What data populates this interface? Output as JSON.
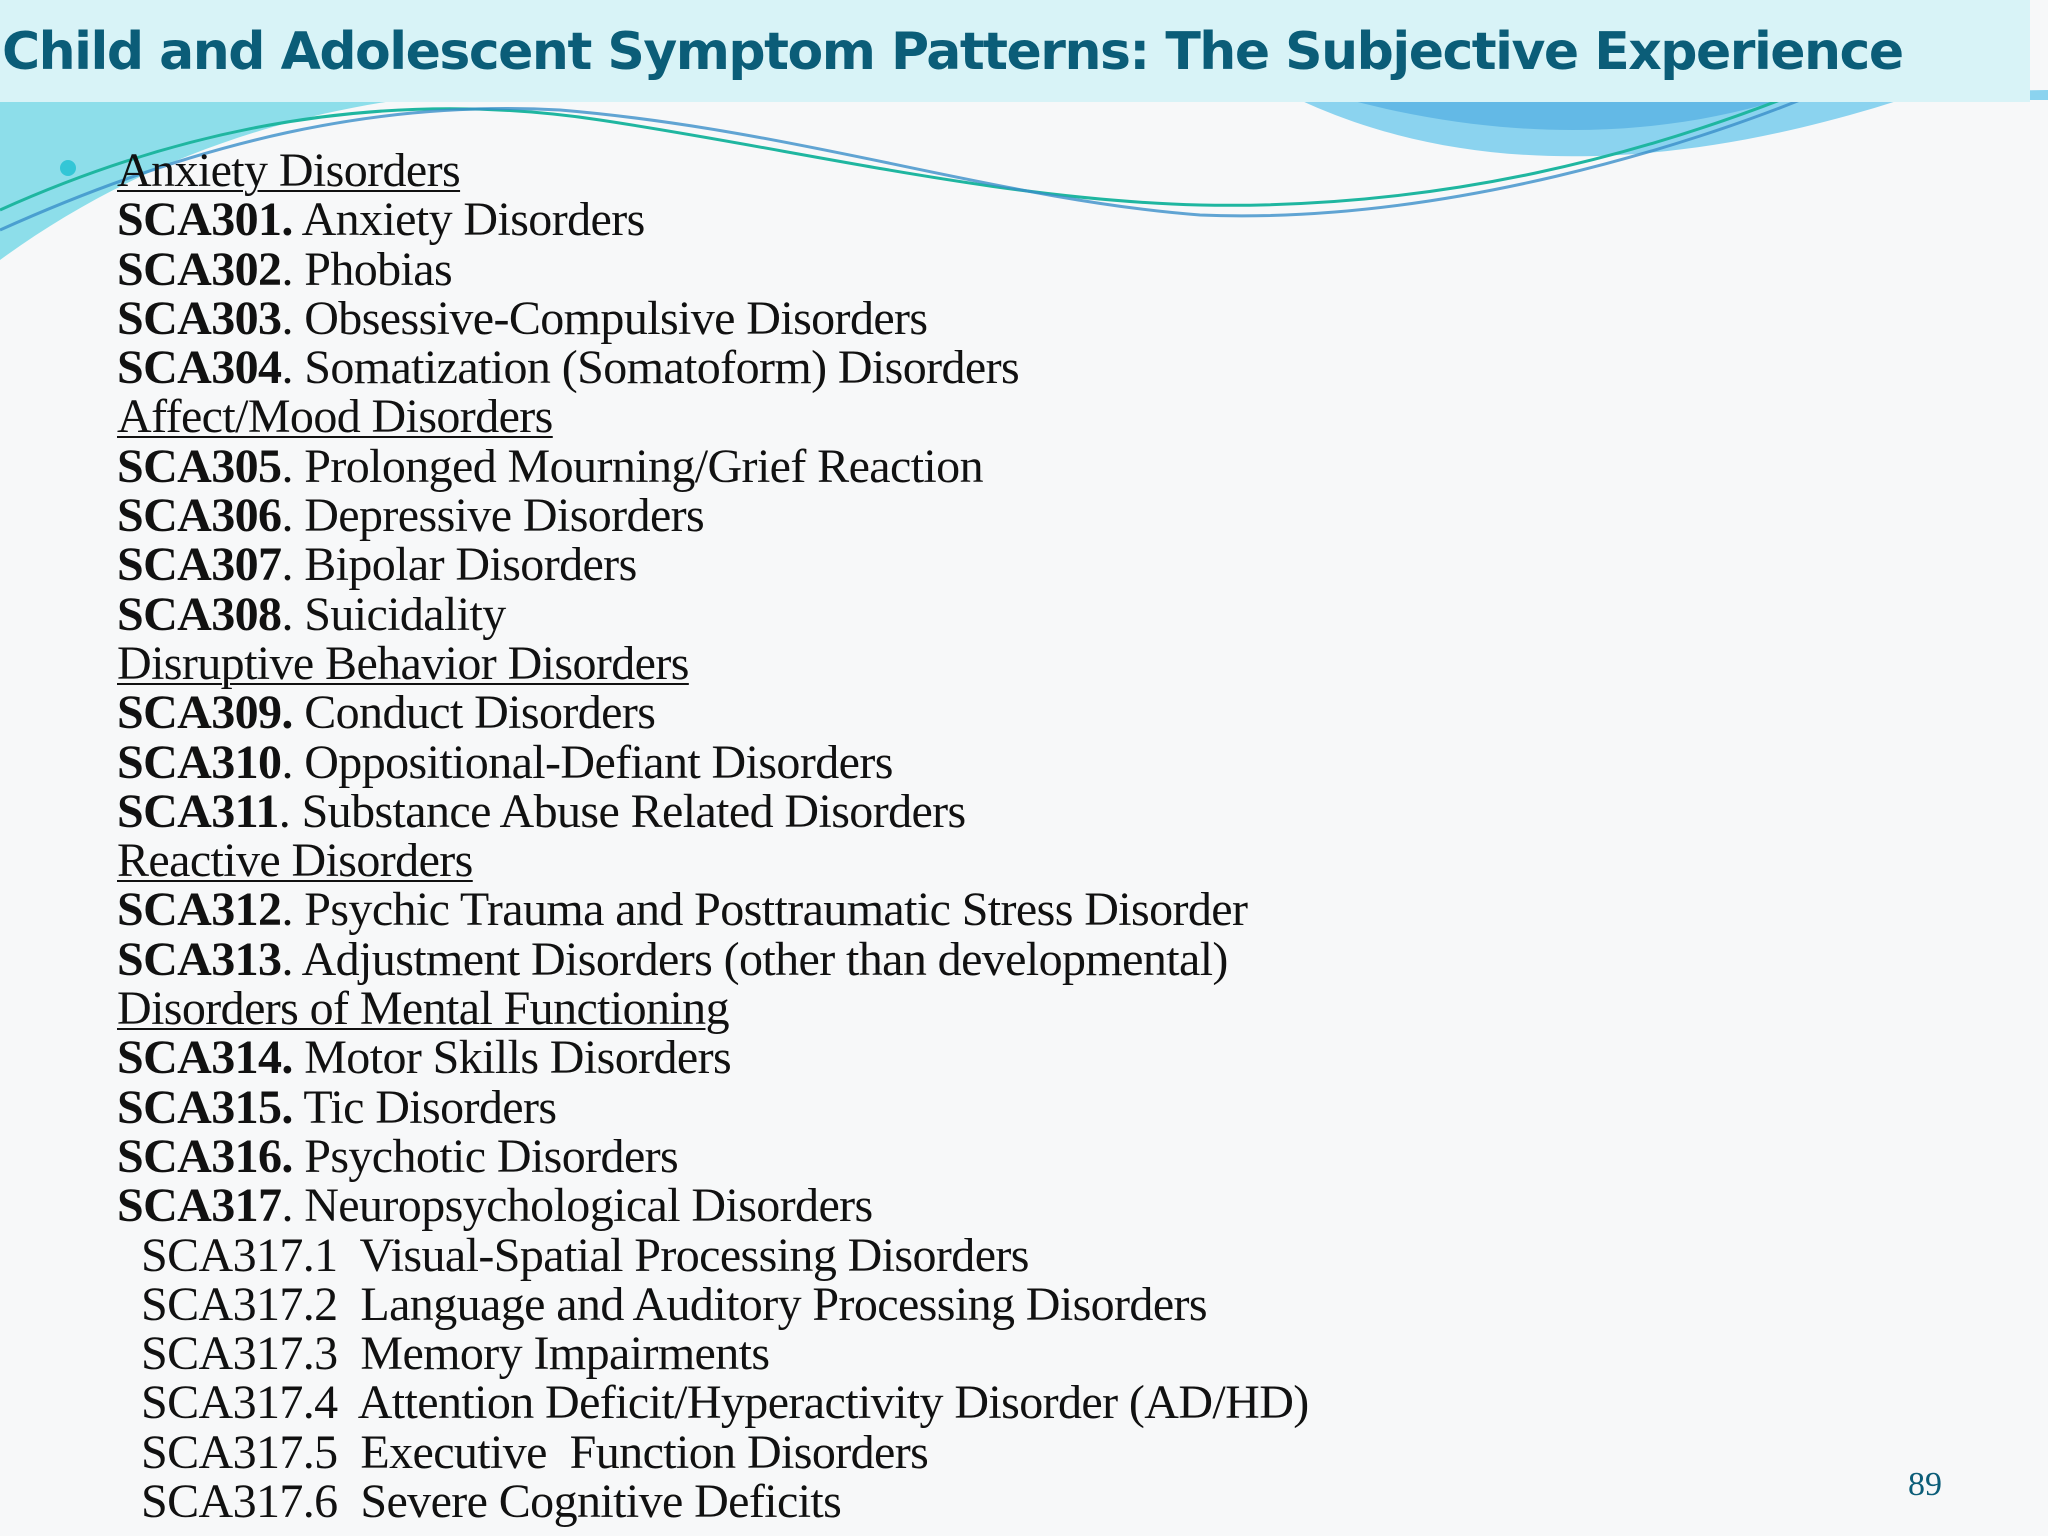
{
  "title": "Child and Adolescent Symptom Patterns: The Subjective Experience",
  "accent_color": "#0b5d78",
  "items": [
    {
      "type": "heading",
      "text": "Anxiety Disorders"
    },
    {
      "type": "item",
      "code": "SCA301.",
      "text": " Anxiety Disorders"
    },
    {
      "type": "item",
      "code": "SCA302",
      "text": ". Phobias"
    },
    {
      "type": "item",
      "code": "SCA303",
      "text": ". Obsessive-Compulsive Disorders"
    },
    {
      "type": "item",
      "code": "SCA304",
      "text": ". Somatization (Somatoform) Disorders"
    },
    {
      "type": "heading",
      "text": "Affect/Mood Disorders"
    },
    {
      "type": "item",
      "code": "SCA305",
      "text": ". Prolonged Mourning/Grief Reaction"
    },
    {
      "type": "item",
      "code": "SCA306",
      "text": ". Depressive Disorders"
    },
    {
      "type": "item",
      "code": "SCA307",
      "text": ". Bipolar Disorders"
    },
    {
      "type": "item",
      "code": "SCA308",
      "text": ". Suicidality"
    },
    {
      "type": "heading",
      "text": "Disruptive Behavior Disorders"
    },
    {
      "type": "item",
      "code": "SCA309.",
      "text": " Conduct Disorders"
    },
    {
      "type": "item",
      "code": "SCA310",
      "text": ". Oppositional-Defiant Disorders"
    },
    {
      "type": "item",
      "code": "SCA311",
      "text": ". Substance Abuse Related Disorders"
    },
    {
      "type": "heading",
      "text": "Reactive Disorders"
    },
    {
      "type": "item",
      "code": "SCA312",
      "text": ". Psychic Trauma and Posttraumatic Stress Disorder"
    },
    {
      "type": "item",
      "code": "SCA313",
      "text": ". Adjustment Disorders (other than developmental)"
    },
    {
      "type": "heading",
      "text": "Disorders of Mental Functioning"
    },
    {
      "type": "item",
      "code": "SCA314.",
      "text": " Motor Skills Disorders"
    },
    {
      "type": "item",
      "code": "SCA315.",
      "text": " Tic Disorders"
    },
    {
      "type": "item",
      "code": "SCA316.",
      "text": " Psychotic Disorders"
    },
    {
      "type": "item",
      "code": "SCA317",
      "text": ". Neuropsychological Disorders"
    },
    {
      "type": "sub",
      "text": "SCA317.1  Visual-Spatial Processing Disorders"
    },
    {
      "type": "sub",
      "text": "SCA317.2  Language and Auditory Processing Disorders"
    },
    {
      "type": "sub",
      "text": "SCA317.3  Memory Impairments"
    },
    {
      "type": "sub",
      "text": "SCA317.4  Attention Deficit/Hyperactivity Disorder (AD/HD)"
    },
    {
      "type": "sub",
      "text": "SCA317.5  Executive  Function Disorders"
    },
    {
      "type": "sub",
      "text": "SCA317.6  Severe Cognitive Deficits"
    }
  ],
  "page_number": "89"
}
